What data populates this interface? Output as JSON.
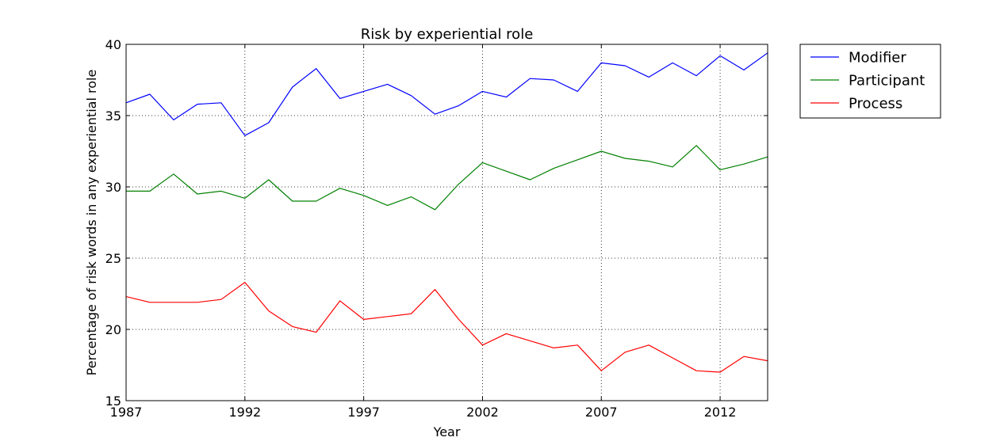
{
  "chart_data": {
    "type": "line",
    "title": "Risk by experiential role",
    "xlabel": "Year",
    "ylabel": "Percentage of risk words in any experiential role",
    "xlim": [
      1987,
      2014
    ],
    "ylim": [
      15,
      40
    ],
    "xticks": [
      1987,
      1992,
      1997,
      2002,
      2007,
      2012
    ],
    "yticks": [
      15,
      20,
      25,
      30,
      35,
      40
    ],
    "grid": true,
    "legend_position": "outside-right-top",
    "x": [
      1987,
      1988,
      1989,
      1990,
      1991,
      1992,
      1993,
      1994,
      1995,
      1996,
      1997,
      1998,
      1999,
      2000,
      2001,
      2002,
      2003,
      2004,
      2005,
      2006,
      2007,
      2008,
      2009,
      2010,
      2011,
      2012,
      2013,
      2014
    ],
    "series": [
      {
        "name": "Modifier",
        "color": "#0000ff",
        "values": [
          35.9,
          36.5,
          34.7,
          35.8,
          35.9,
          33.6,
          34.5,
          37.0,
          38.3,
          36.2,
          36.7,
          37.2,
          36.4,
          35.1,
          35.7,
          36.7,
          36.3,
          37.6,
          37.5,
          36.7,
          38.7,
          38.5,
          37.7,
          38.7,
          37.8,
          39.2,
          38.2,
          39.4
        ]
      },
      {
        "name": "Participant",
        "color": "#008000",
        "values": [
          29.7,
          29.7,
          30.9,
          29.5,
          29.7,
          29.2,
          30.5,
          29.0,
          29.0,
          29.9,
          29.4,
          28.7,
          29.3,
          28.4,
          30.2,
          31.7,
          31.1,
          30.5,
          31.3,
          31.9,
          32.5,
          32.0,
          31.8,
          31.4,
          32.9,
          31.2,
          31.6,
          32.1
        ]
      },
      {
        "name": "Process",
        "color": "#ff0000",
        "values": [
          22.3,
          21.9,
          21.9,
          21.9,
          22.1,
          23.3,
          21.3,
          20.2,
          19.8,
          22.0,
          20.7,
          20.9,
          21.1,
          22.8,
          20.7,
          18.9,
          19.7,
          19.2,
          18.7,
          18.9,
          17.1,
          18.4,
          18.9,
          18.0,
          17.1,
          17.0,
          18.1,
          17.8
        ]
      }
    ]
  }
}
